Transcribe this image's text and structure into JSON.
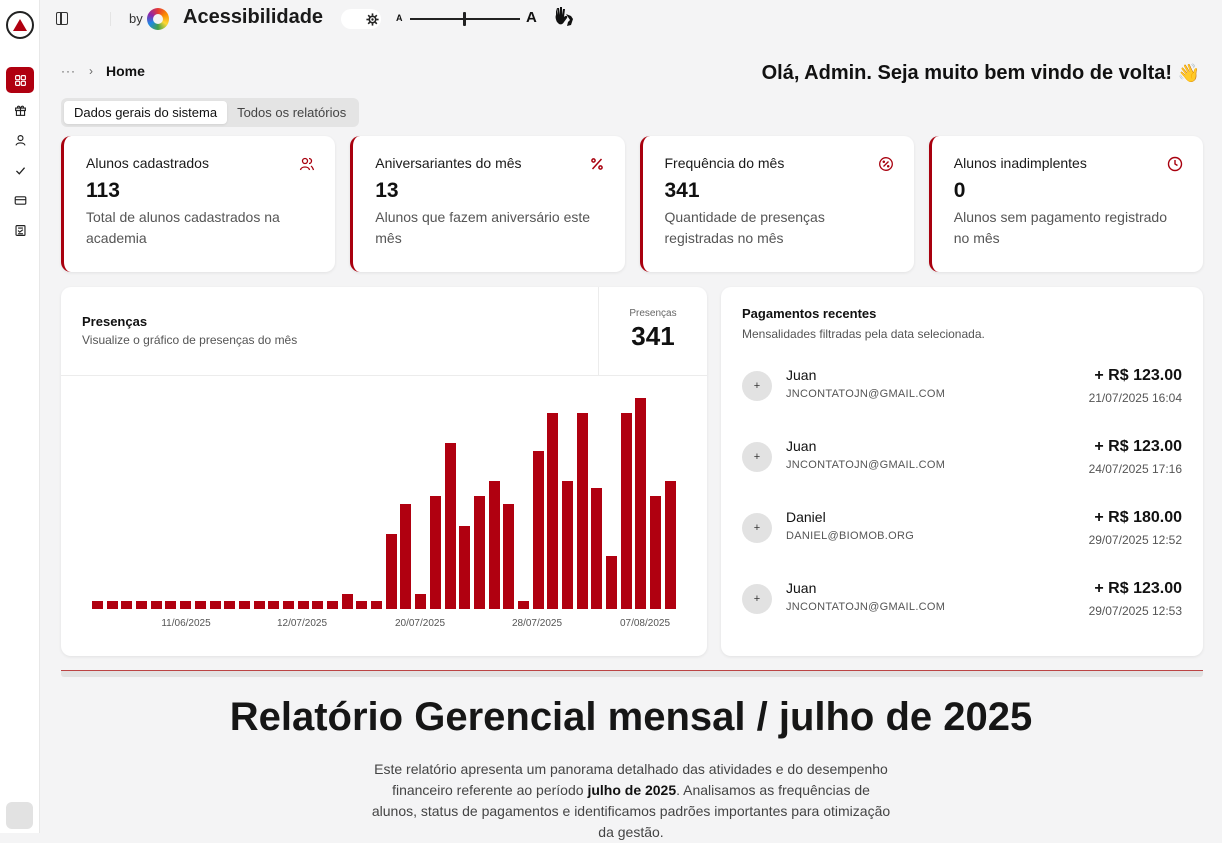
{
  "topbar": {
    "by_label": "by",
    "accessibility_title": "Acessibilidade",
    "font_small_label": "A",
    "font_big_label": "A",
    "sign_language_icon": "hand-sign-icon",
    "theme_icon": "sun-gear-icon"
  },
  "sidebar": {
    "items": [
      {
        "name": "dashboard",
        "icon": "grid-icon",
        "active": true
      },
      {
        "name": "birthdays",
        "icon": "gift-icon",
        "active": false
      },
      {
        "name": "students",
        "icon": "user-icon",
        "active": false
      },
      {
        "name": "attendance",
        "icon": "check-icon",
        "active": false
      },
      {
        "name": "payments",
        "icon": "credit-card-icon",
        "active": false
      },
      {
        "name": "reports",
        "icon": "report-icon",
        "active": false
      }
    ]
  },
  "breadcrumb": {
    "ellipsis": "···",
    "chevron": "›",
    "current": "Home"
  },
  "welcome": {
    "text": "Olá, Admin. Seja muito bem vindo de volta!",
    "emoji": "👋"
  },
  "tabs": [
    {
      "label": "Dados gerais do sistema",
      "active": true
    },
    {
      "label": "Todos os relatórios",
      "active": false
    }
  ],
  "cards": [
    {
      "title": "Alunos cadastrados",
      "value": "113",
      "desc": "Total de alunos cadastrados na academia",
      "icon": "users-icon"
    },
    {
      "title": "Aniversariantes do mês",
      "value": "13",
      "desc": "Alunos que fazem aniversário este mês",
      "icon": "percent-icon"
    },
    {
      "title": "Frequência do mês",
      "value": "341",
      "desc": "Quantidade de presenças registradas no mês",
      "icon": "badge-percent-icon"
    },
    {
      "title": "Alunos inadimplentes",
      "value": "0",
      "desc": "Alunos sem pagamento registrado no mês",
      "icon": "clock-icon"
    }
  ],
  "chart_panel": {
    "title": "Presenças",
    "subtitle": "Visualize o gráfico de presenças do mês",
    "stat_label": "Presenças",
    "stat_value": "341"
  },
  "chart_data": {
    "type": "bar",
    "title": "Presenças",
    "xlabel": "",
    "ylabel": "",
    "grid": false,
    "bar_color": "#b00010",
    "tick_labels": [
      "11/06/2025",
      "12/07/2025",
      "20/07/2025",
      "28/07/2025",
      "07/08/2025"
    ],
    "values": [
      1,
      1,
      1,
      1,
      1,
      1,
      1,
      1,
      1,
      1,
      1,
      1,
      1,
      1,
      1,
      1,
      1,
      2,
      1,
      1,
      10,
      14,
      2,
      15,
      22,
      11,
      15,
      17,
      14,
      1,
      21,
      26,
      17,
      26,
      16,
      7,
      26,
      28,
      15,
      17
    ],
    "total": 341,
    "ylim": [
      0,
      30
    ]
  },
  "payments": {
    "title": "Pagamentos recentes",
    "subtitle": "Mensalidades filtradas pela data selecionada.",
    "avatar_symbol": "+",
    "items": [
      {
        "name": "Juan",
        "email": "JNCONTATOJN@GMAIL.COM",
        "amount": "+ R$ 123.00",
        "date": "21/07/2025 16:04"
      },
      {
        "name": "Juan",
        "email": "JNCONTATOJN@GMAIL.COM",
        "amount": "+ R$ 123.00",
        "date": "24/07/2025 17:16"
      },
      {
        "name": "Daniel",
        "email": "DANIEL@BIOMOB.ORG",
        "amount": "+ R$ 180.00",
        "date": "29/07/2025 12:52"
      },
      {
        "name": "Juan",
        "email": "JNCONTATOJN@GMAIL.COM",
        "amount": "+ R$ 123.00",
        "date": "29/07/2025 12:53"
      }
    ]
  },
  "report": {
    "title": "Relatório Gerencial mensal / julho de 2025",
    "text_before": "Este relatório apresenta um panorama detalhado das atividades e do desempenho financeiro referente ao período ",
    "text_bold": "julho de 2025",
    "text_after": ". Analisamos as frequências de alunos, status de pagamentos e identificamos padrões importantes para otimização da gestão."
  },
  "colors": {
    "accent": "#b00010",
    "background": "#f4f4f5",
    "card": "#ffffff"
  }
}
